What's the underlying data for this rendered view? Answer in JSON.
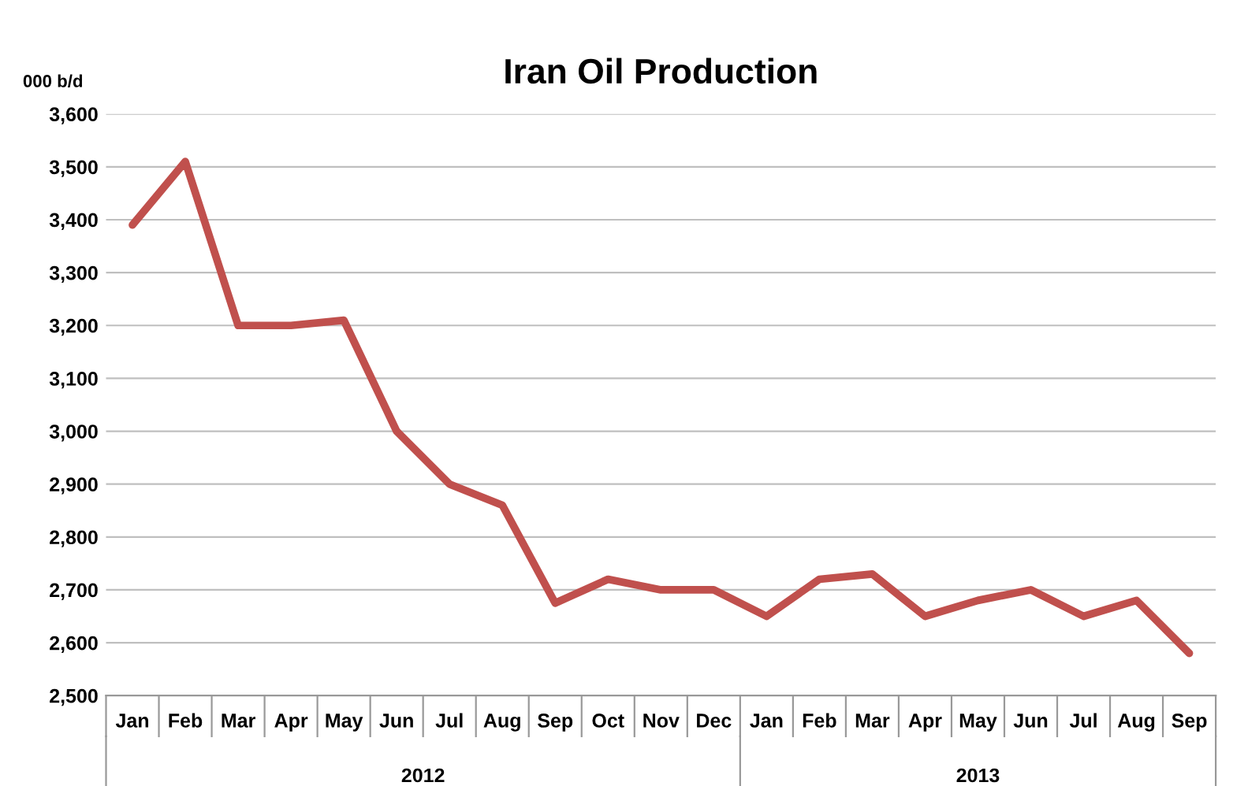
{
  "chart_data": {
    "type": "line",
    "title": "Iran Oil Production",
    "ylabel": "000 b/d",
    "categories": [
      "Jan",
      "Feb",
      "Mar",
      "Apr",
      "May",
      "Jun",
      "Jul",
      "Aug",
      "Sep",
      "Oct",
      "Nov",
      "Dec",
      "Jan",
      "Feb",
      "Mar",
      "Apr",
      "May",
      "Jun",
      "Jul",
      "Aug",
      "Sep"
    ],
    "series": [
      {
        "color": "#c0504d",
        "values": [
          3390,
          3510,
          3200,
          3200,
          3210,
          3000,
          2900,
          2860,
          2675,
          2720,
          2700,
          2700,
          2650,
          2720,
          2730,
          2650,
          2680,
          2700,
          2650,
          2680,
          2580
        ]
      }
    ],
    "annotations": [
      "2012",
      "2013"
    ],
    "ylim": [
      2500,
      3600
    ],
    "yticks": [
      {
        "value": 2500,
        "label": "2,500"
      },
      {
        "value": 2600,
        "label": "2,600"
      },
      {
        "value": 2700,
        "label": "2,700"
      },
      {
        "value": 2800,
        "label": "2,800"
      },
      {
        "value": 2900,
        "label": "2,900"
      },
      {
        "value": 3000,
        "label": "3,000"
      },
      {
        "value": 3100,
        "label": "3,100"
      },
      {
        "value": 3200,
        "label": "3,200"
      },
      {
        "value": 3300,
        "label": "3,300"
      },
      {
        "value": 3400,
        "label": "3,400"
      },
      {
        "value": 3500,
        "label": "3,500"
      },
      {
        "value": 3600,
        "label": "3,600"
      }
    ],
    "grid": "y",
    "marker": "none",
    "line_style": "solid"
  }
}
